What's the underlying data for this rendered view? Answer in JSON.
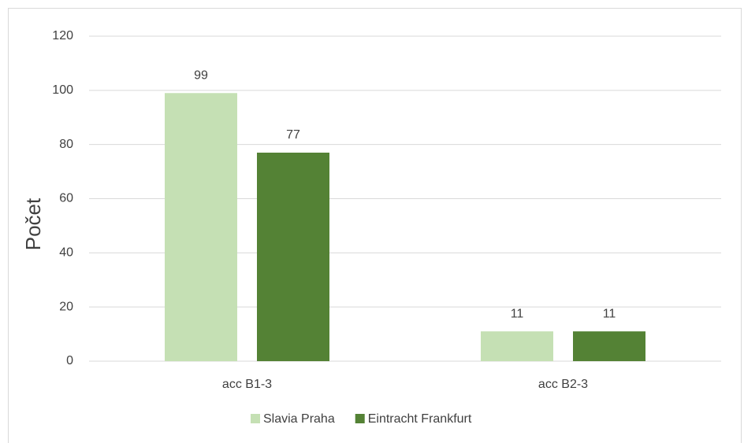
{
  "chart_data": {
    "type": "bar",
    "y_axis_label": "Počet",
    "categories": [
      "acc B1-3",
      "acc B2-3"
    ],
    "series": [
      {
        "name": "Slavia Praha",
        "color": "#c5e0b4",
        "values": [
          99,
          11
        ]
      },
      {
        "name": "Eintracht Frankfurt",
        "color": "#548235",
        "values": [
          77,
          11
        ]
      }
    ],
    "ylim": [
      0,
      120
    ],
    "yticks": [
      0,
      20,
      40,
      60,
      80,
      100,
      120
    ],
    "grid": true,
    "data_labels": true,
    "legend": "bottom"
  }
}
